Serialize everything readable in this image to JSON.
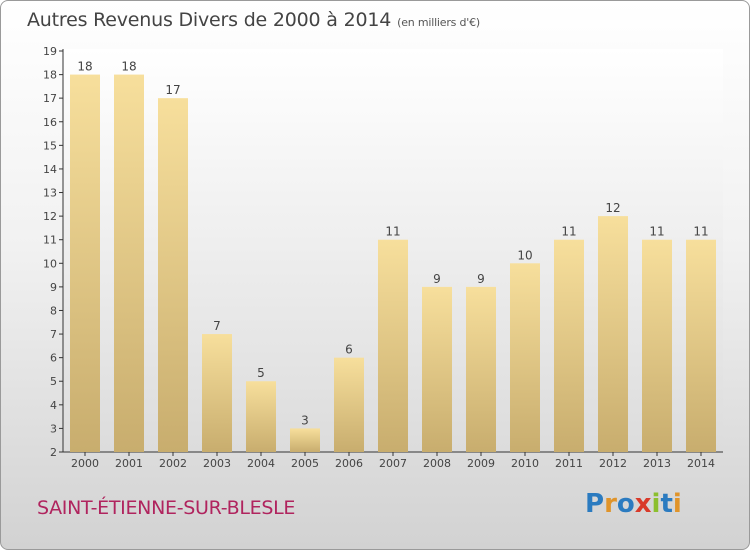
{
  "chart_data": {
    "type": "bar",
    "title": "Autres Revenus Divers de 2000 à 2014",
    "subtitle": "(en milliers d'€)",
    "categories": [
      "2000",
      "2001",
      "2002",
      "2003",
      "2004",
      "2005",
      "2006",
      "2007",
      "2008",
      "2009",
      "2010",
      "2011",
      "2012",
      "2013",
      "2014"
    ],
    "values": [
      18,
      18,
      17,
      7,
      5,
      3,
      6,
      11,
      9,
      9,
      10,
      11,
      12,
      11,
      11
    ],
    "ylim": [
      2,
      19
    ],
    "yticks": [
      2,
      3,
      4,
      5,
      6,
      7,
      8,
      9,
      10,
      11,
      12,
      13,
      14,
      15,
      16,
      17,
      18,
      19
    ],
    "grid": false,
    "bar_color": "#e6c97e"
  },
  "footer": {
    "commune": "SAINT-ÉTIENNE-SUR-BLESLE"
  },
  "brand": {
    "letters": [
      "P",
      "r",
      "o",
      "x",
      "i",
      "t",
      "i"
    ],
    "colors": [
      "#2b7bc0",
      "#e0942a",
      "#2b7bc0",
      "#d93a2a",
      "#8cbf2e",
      "#2b7bc0",
      "#e0942a"
    ]
  },
  "colors": {
    "commune": "#b0245e",
    "title": "#444444"
  }
}
